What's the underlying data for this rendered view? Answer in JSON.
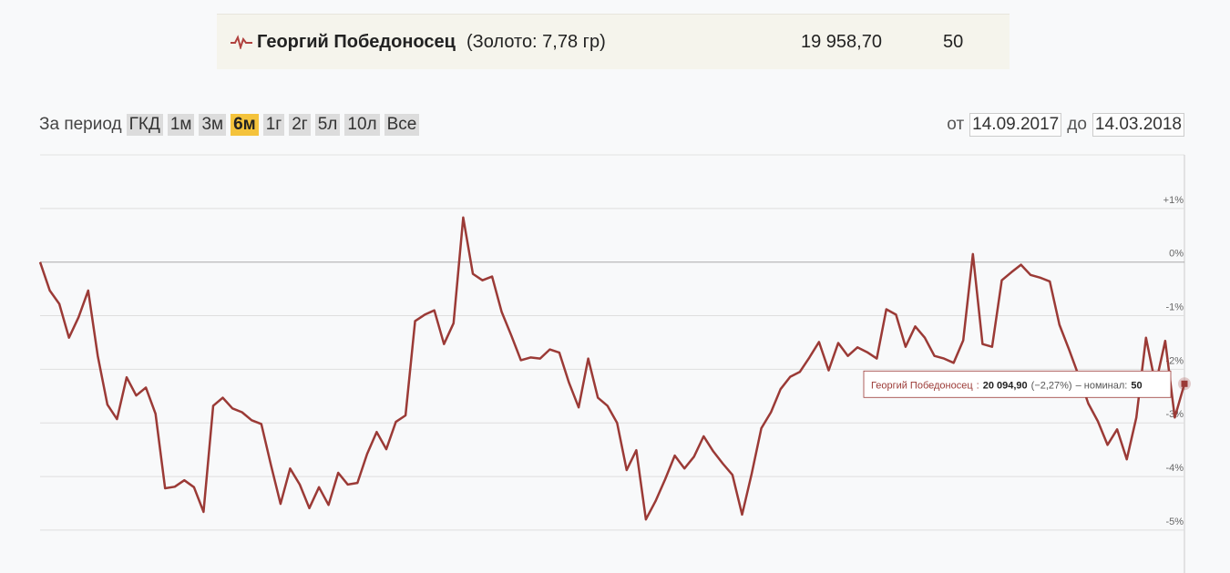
{
  "header_row": {
    "name": "Георгий Победоносец",
    "detail": "(Золото: 7,78 гр)",
    "price": "19 958,70",
    "nominal": "50"
  },
  "period": {
    "label": "За период",
    "buttons": [
      "ГКД",
      "1м",
      "3м",
      "6м",
      "1г",
      "2г",
      "5л",
      "10л",
      "Все"
    ],
    "active": "6м"
  },
  "date_range": {
    "from_label": "от",
    "from": "14.09.2017",
    "to_label": "до",
    "to": "14.03.2018"
  },
  "chart_data": {
    "type": "line",
    "grid": true,
    "ylim": [
      -5.8,
      2
    ],
    "yticks": [
      {
        "value": 1,
        "label": "+1%"
      },
      {
        "value": 0,
        "label": "0%"
      },
      {
        "value": -1,
        "label": "-1%"
      },
      {
        "value": -2,
        "label": "-2%"
      },
      {
        "value": -3,
        "label": "-3%"
      },
      {
        "value": -4,
        "label": "-4%"
      },
      {
        "value": -5,
        "label": "-5%"
      }
    ],
    "series": [
      {
        "name": "Георгий Победоносец",
        "color": "#9b3a36",
        "values": [
          0,
          -0.53,
          -0.78,
          -1.41,
          -1.03,
          -0.53,
          -1.75,
          -2.66,
          -2.93,
          -2.15,
          -2.49,
          -2.34,
          -2.83,
          -4.22,
          -4.19,
          -4.07,
          -4.2,
          -4.66,
          -2.68,
          -2.53,
          -2.73,
          -2.8,
          -2.95,
          -3.02,
          -3.78,
          -4.51,
          -3.85,
          -4.15,
          -4.59,
          -4.2,
          -4.53,
          -3.93,
          -4.15,
          -4.12,
          -3.58,
          -3.17,
          -3.49,
          -2.98,
          -2.86,
          -1.1,
          -0.98,
          -0.9,
          -1.53,
          -1.14,
          0.83,
          -0.22,
          -0.34,
          -0.27,
          -0.93,
          -1.37,
          -1.83,
          -1.78,
          -1.8,
          -1.63,
          -1.69,
          -2.25,
          -2.71,
          -1.8,
          -2.53,
          -2.68,
          -3.0,
          -3.88,
          -3.51,
          -4.8,
          -4.46,
          -4.05,
          -3.61,
          -3.85,
          -3.63,
          -3.25,
          -3.53,
          -3.76,
          -3.97,
          -4.71,
          -3.95,
          -3.1,
          -2.8,
          -2.37,
          -2.14,
          -2.05,
          -1.78,
          -1.49,
          -2.02,
          -1.51,
          -1.75,
          -1.59,
          -1.68,
          -1.8,
          -0.88,
          -0.98,
          -1.58,
          -1.2,
          -1.41,
          -1.75,
          -1.8,
          -1.88,
          -1.46,
          0.15,
          -1.53,
          -1.58,
          -0.34,
          -0.19,
          -0.05,
          -0.24,
          -0.29,
          -0.36,
          -1.17,
          -1.63,
          -2.12,
          -2.64,
          -2.97,
          -3.41,
          -3.12,
          -3.68,
          -2.9,
          -1.41,
          -2.29,
          -1.47,
          -2.9,
          -2.27
        ]
      }
    ],
    "tooltip": {
      "name": "Георгий Победоносец",
      "separator": ":",
      "price": "20 094,90",
      "change": "(−2,27%)",
      "nominal_label": "– номинал:",
      "nominal": "50"
    }
  }
}
